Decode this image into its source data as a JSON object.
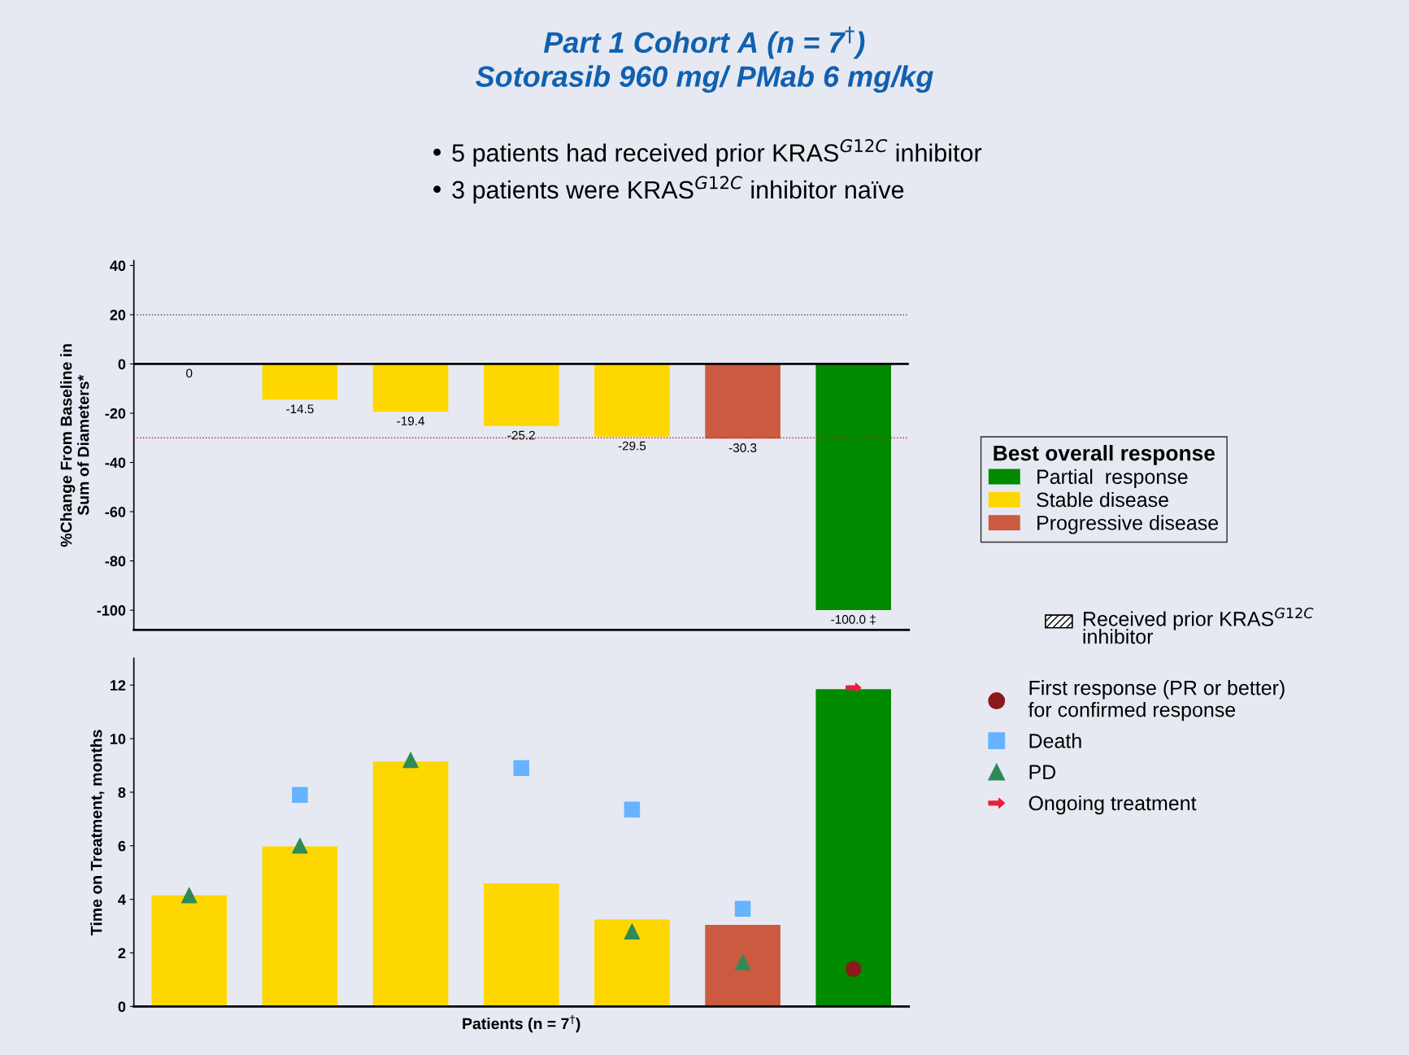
{
  "chart_data": [
    {
      "type": "bar",
      "title": "Part 1 Cohort A (n = 7$^{†}$)\nSotorasib 960 mg/ PMab 6 mg/kg",
      "annotations": [
        "• 5 patients had received prior KRAS$^{G12C}$ inhibitor",
        "• 3 patients were KRAS$^{G12C}$ inhibitor naïve"
      ],
      "ylabel": "%Change From Baseline in\nSum of Diameters*",
      "categories": [
        null,
        null,
        null,
        null,
        null,
        null,
        null
      ],
      "series": [
        {
          "name": "Partial  response",
          "color": "#008a00",
          "values": [
            null,
            null,
            null,
            null,
            null,
            null,
            -100.0
          ],
          "value_labels": [
            null,
            null,
            null,
            null,
            null,
            null,
            "-100.0 ‡"
          ]
        },
        {
          "name": "Stable disease",
          "color": "#ffd700",
          "values": [
            0,
            -14.5,
            -19.4,
            -25.2,
            -29.5,
            null,
            null
          ],
          "value_labels": [
            "0",
            "-14.5",
            "-19.4",
            "-25.2",
            "-29.5",
            null,
            null
          ]
        },
        {
          "name": "Progressive disease",
          "color": "#cc5a40",
          "values": [
            null,
            null,
            null,
            null,
            null,
            -30.3,
            null
          ],
          "value_labels": [
            null,
            null,
            null,
            null,
            null,
            "-30.3",
            null
          ]
        }
      ],
      "legend_title": "Best overall response",
      "legend": "right",
      "ylim": [
        -108,
        42
      ],
      "yticks": [
        -100,
        -80,
        -60,
        -40,
        -20,
        0,
        20,
        40
      ],
      "ref_lines": [
        {
          "axis": "y",
          "value": 20,
          "color": "#555555",
          "line_style": "dotted"
        },
        {
          "axis": "y",
          "value": -30,
          "color": "#cc2222",
          "line_style": "dotted"
        },
        {
          "axis": "y",
          "value": 0,
          "color": "#000000",
          "line_style": "solid"
        }
      ],
      "tick_labels": "y",
      "grid": false
    },
    {
      "type": "bar",
      "ylabel": "Time on Treatment, months",
      "xlabel": "Patients (n = 7$^{†}$)",
      "categories": [
        null,
        null,
        null,
        null,
        null,
        null,
        null
      ],
      "values": [
        4.15,
        5.98,
        9.15,
        4.6,
        3.25,
        3.05,
        11.85
      ],
      "colors": [
        "#ffd700",
        "#ffd700",
        "#ffd700",
        "#ffd700",
        "#ffd700",
        "#cc5a40",
        "#008a00"
      ],
      "series": [
        {
          "name": "First response (PR or better)\nfor confirmed response",
          "type": "scatter",
          "marker": "circle",
          "color": "#8b1a1a",
          "values": [
            null,
            null,
            null,
            null,
            null,
            null,
            1.4
          ]
        },
        {
          "name": "Death",
          "type": "scatter",
          "marker": "square",
          "color": "#66b3ff",
          "values": [
            null,
            7.9,
            null,
            8.9,
            7.35,
            3.65,
            null
          ]
        },
        {
          "name": "PD",
          "type": "scatter",
          "marker": "triangle",
          "color": "#2e8b57",
          "values": [
            4.15,
            6.0,
            9.2,
            null,
            2.8,
            1.65,
            null
          ]
        },
        {
          "name": "Ongoing treatment",
          "type": "scatter",
          "color": "#e8203c",
          "values": [
            null,
            null,
            null,
            null,
            null,
            null,
            11.9
          ]
        }
      ],
      "annotations": [
        "Received prior KRAS$^{G12C}$\ninhibitor"
      ],
      "legend": "right",
      "ylim": [
        0,
        13
      ],
      "yticks": [
        0,
        2,
        4,
        6,
        8,
        10,
        12
      ],
      "tick_labels": "y",
      "grid": false
    }
  ]
}
